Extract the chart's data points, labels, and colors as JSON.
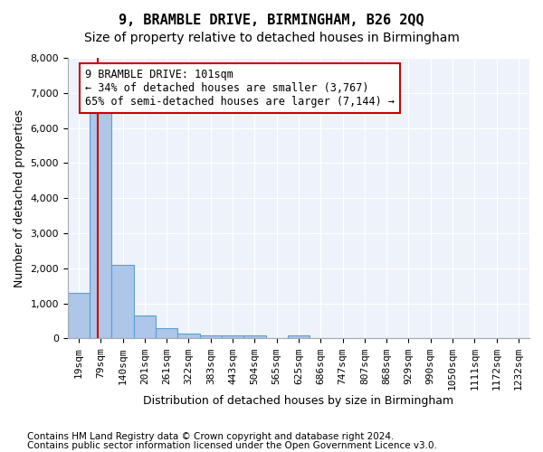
{
  "title": "9, BRAMBLE DRIVE, BIRMINGHAM, B26 2QQ",
  "subtitle": "Size of property relative to detached houses in Birmingham",
  "xlabel": "Distribution of detached houses by size in Birmingham",
  "ylabel": "Number of detached properties",
  "footnote1": "Contains HM Land Registry data © Crown copyright and database right 2024.",
  "footnote2": "Contains public sector information licensed under the Open Government Licence v3.0.",
  "bar_labels": [
    "19sqm",
    "79sqm",
    "140sqm",
    "201sqm",
    "261sqm",
    "322sqm",
    "383sqm",
    "443sqm",
    "504sqm",
    "565sqm",
    "625sqm",
    "686sqm",
    "747sqm",
    "807sqm",
    "868sqm",
    "929sqm",
    "990sqm",
    "1050sqm",
    "1111sqm",
    "1172sqm",
    "1232sqm"
  ],
  "bar_values": [
    1300,
    6600,
    2100,
    650,
    300,
    150,
    100,
    100,
    100,
    0,
    100,
    0,
    0,
    0,
    0,
    0,
    0,
    0,
    0,
    0,
    0
  ],
  "bar_color": "#aec6e8",
  "bar_edge_color": "#5a9fd4",
  "bar_edge_width": 0.8,
  "property_line_color": "#cc0000",
  "annotation_text": "9 BRAMBLE DRIVE: 101sqm\n← 34% of detached houses are smaller (3,767)\n65% of semi-detached houses are larger (7,144) →",
  "annotation_box_color": "#cc0000",
  "annotation_text_color": "#000000",
  "ylim": [
    0,
    8000
  ],
  "yticks": [
    0,
    1000,
    2000,
    3000,
    4000,
    5000,
    6000,
    7000,
    8000
  ],
  "background_color": "#ffffff",
  "plot_background": "#eef3fb",
  "grid_color": "#ffffff",
  "title_fontsize": 11,
  "subtitle_fontsize": 10,
  "axis_label_fontsize": 9,
  "tick_fontsize": 8,
  "annotation_fontsize": 8.5,
  "footnote_fontsize": 7.5
}
